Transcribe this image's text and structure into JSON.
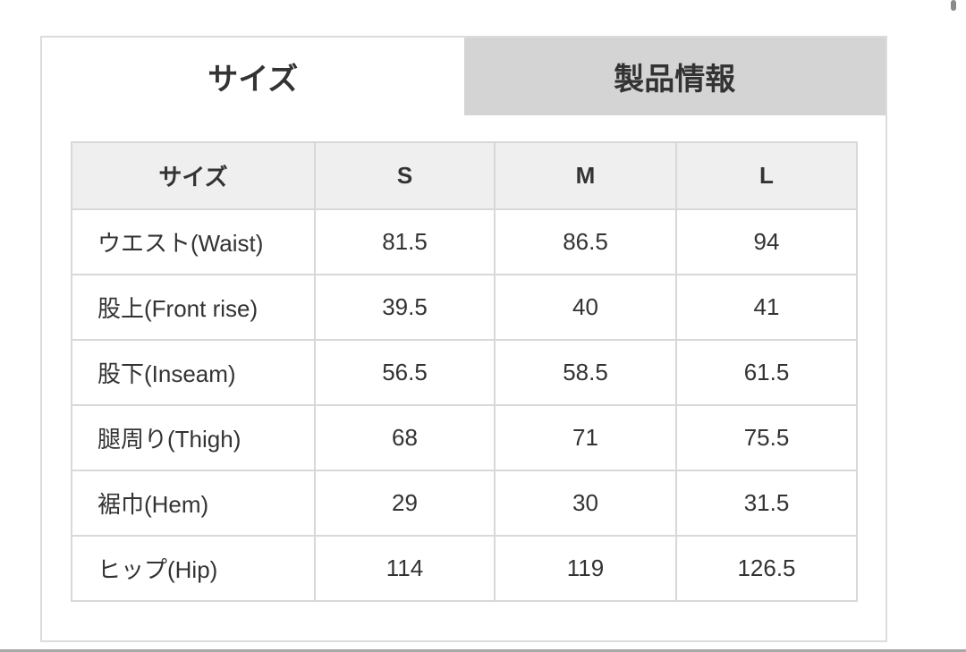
{
  "tabs": [
    {
      "label": "サイズ",
      "active": true
    },
    {
      "label": "製品情報",
      "active": false
    }
  ],
  "table": {
    "headers": [
      "サイズ",
      "S",
      "M",
      "L"
    ],
    "rows": [
      {
        "label": "ウエスト(Waist)",
        "values": [
          "81.5",
          "86.5",
          "94"
        ]
      },
      {
        "label": "股上(Front rise)",
        "values": [
          "39.5",
          "40",
          "41"
        ]
      },
      {
        "label": "股下(Inseam)",
        "values": [
          "56.5",
          "58.5",
          "61.5"
        ]
      },
      {
        "label": "腿周り(Thigh)",
        "values": [
          "68",
          "71",
          "75.5"
        ]
      },
      {
        "label": "裾巾(Hem)",
        "values": [
          "29",
          "30",
          "31.5"
        ]
      },
      {
        "label": "ヒップ(Hip)",
        "values": [
          "114",
          "119",
          "126.5"
        ]
      }
    ]
  },
  "colors": {
    "inactive_tab": "#d4d4d4",
    "header_bg": "#efefef",
    "border": "#d8d8d8"
  }
}
